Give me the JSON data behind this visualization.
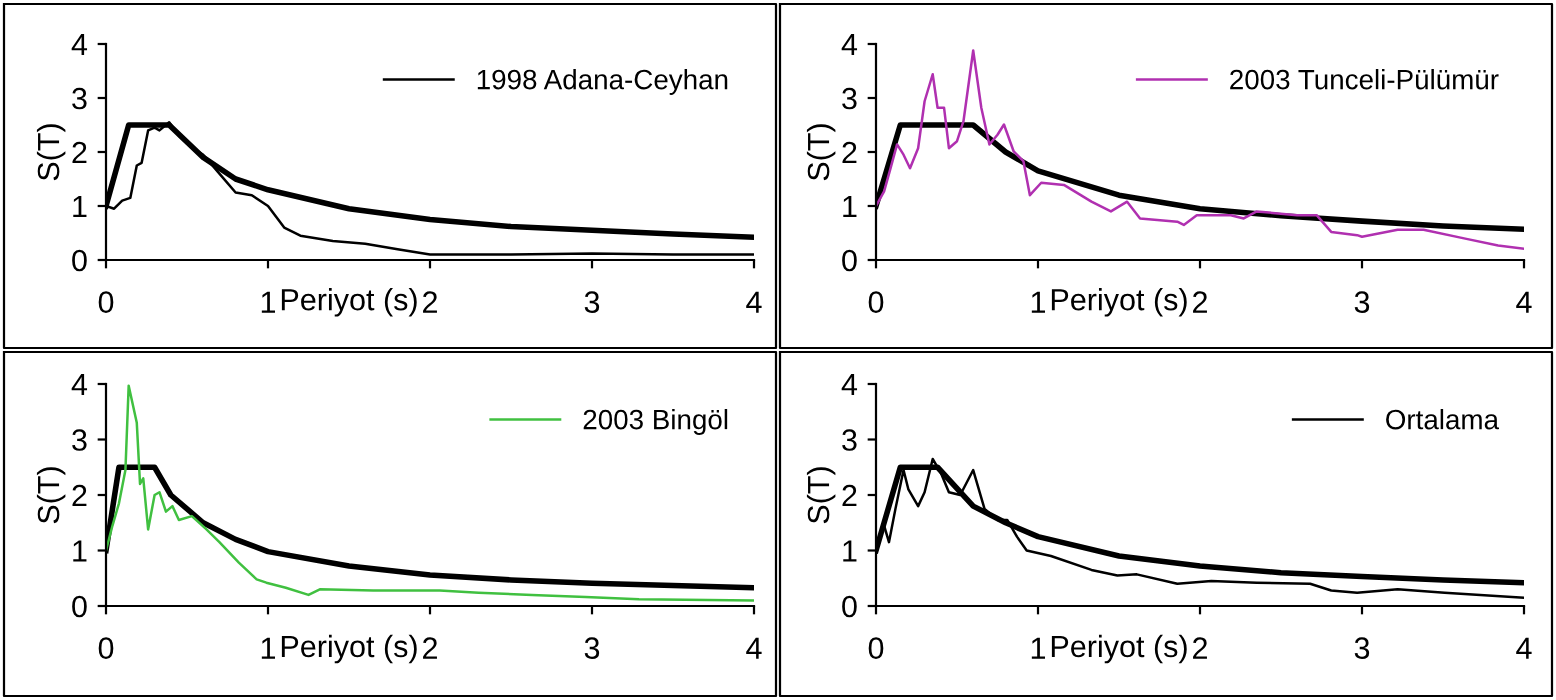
{
  "chart_data": [
    {
      "type": "line",
      "xlabel": "Periyot (s)",
      "ylabel": "S(T)",
      "xlim": [
        0,
        4
      ],
      "ylim": [
        0,
        4
      ],
      "xticks": [
        0,
        1,
        2,
        3,
        4
      ],
      "yticks": [
        0,
        1,
        2,
        3,
        4
      ],
      "legend": "top right",
      "grid": false,
      "series": [
        {
          "color": "#000000",
          "x": [
            0,
            0.14,
            0.39,
            0.6,
            0.8,
            1.0,
            1.5,
            2,
            2.5,
            3,
            3.5,
            4
          ],
          "values": [
            1,
            2.5,
            2.5,
            1.9,
            1.5,
            1.3,
            0.95,
            0.75,
            0.62,
            0.55,
            0.48,
            0.42
          ]
        },
        {
          "name": "1998 Adana-Ceyhan",
          "color": "#000000",
          "x": [
            0,
            0.05,
            0.1,
            0.15,
            0.19,
            0.22,
            0.26,
            0.3,
            0.33,
            0.39,
            0.45,
            0.52,
            0.6,
            0.7,
            0.8,
            0.9,
            1.0,
            1.1,
            1.2,
            1.4,
            1.6,
            1.8,
            2.0,
            2.5,
            3,
            3.5,
            4
          ],
          "values": [
            1.0,
            0.95,
            1.1,
            1.15,
            1.75,
            1.8,
            2.4,
            2.45,
            2.4,
            2.55,
            2.3,
            2.1,
            1.95,
            1.6,
            1.25,
            1.2,
            1.0,
            0.6,
            0.45,
            0.35,
            0.3,
            0.2,
            0.1,
            0.1,
            0.12,
            0.1,
            0.1
          ]
        }
      ]
    },
    {
      "type": "line",
      "xlabel": "Periyot (s)",
      "ylabel": "S(T)",
      "xlim": [
        0,
        4
      ],
      "ylim": [
        0,
        4
      ],
      "xticks": [
        0,
        1,
        2,
        3,
        4
      ],
      "yticks": [
        0,
        1,
        2,
        3,
        4
      ],
      "legend": "top right",
      "grid": false,
      "series": [
        {
          "color": "#000000",
          "x": [
            0,
            0.15,
            0.6,
            0.8,
            1.0,
            1.5,
            2,
            2.5,
            3,
            3.5,
            4
          ],
          "values": [
            1,
            2.5,
            2.5,
            2.0,
            1.65,
            1.2,
            0.95,
            0.82,
            0.72,
            0.63,
            0.57
          ]
        },
        {
          "name": "2003 Tunceli-Pülümür",
          "color": "#b030b0",
          "x": [
            0,
            0.05,
            0.09,
            0.13,
            0.17,
            0.21,
            0.26,
            0.3,
            0.35,
            0.38,
            0.42,
            0.45,
            0.5,
            0.54,
            0.6,
            0.65,
            0.7,
            0.75,
            0.79,
            0.85,
            0.91,
            0.95,
            1.02,
            1.16,
            1.33,
            1.45,
            1.55,
            1.63,
            1.86,
            1.9,
            1.98,
            2.19,
            2.27,
            2.35,
            2.6,
            2.72,
            2.81,
            2.97,
            3.0,
            3.22,
            3.38,
            3.63,
            3.84,
            4.0
          ],
          "values": [
            1.0,
            1.27,
            1.7,
            2.14,
            1.95,
            1.7,
            2.07,
            2.94,
            3.44,
            2.82,
            2.82,
            2.07,
            2.2,
            2.57,
            3.88,
            2.82,
            2.14,
            2.32,
            2.51,
            2.01,
            1.83,
            1.2,
            1.43,
            1.39,
            1.08,
            0.9,
            1.08,
            0.77,
            0.71,
            0.65,
            0.83,
            0.83,
            0.77,
            0.9,
            0.83,
            0.83,
            0.52,
            0.46,
            0.43,
            0.56,
            0.56,
            0.4,
            0.27,
            0.21
          ]
        }
      ]
    },
    {
      "type": "line",
      "xlabel": "Periyot (s)",
      "ylabel": "S(T)",
      "xlim": [
        0,
        4
      ],
      "ylim": [
        0,
        4
      ],
      "xticks": [
        0,
        1,
        2,
        3,
        4
      ],
      "yticks": [
        0,
        1,
        2,
        3,
        4
      ],
      "legend": "top right",
      "grid": false,
      "series": [
        {
          "color": "#000000",
          "x": [
            0,
            0.08,
            0.3,
            0.4,
            0.6,
            0.8,
            1.0,
            1.5,
            2,
            2.5,
            3,
            3.5,
            4
          ],
          "values": [
            1,
            2.5,
            2.5,
            2.0,
            1.5,
            1.2,
            0.98,
            0.72,
            0.56,
            0.47,
            0.41,
            0.37,
            0.33
          ]
        },
        {
          "name": "2003 Bingöl",
          "color": "#40c040",
          "x": [
            0,
            0.04,
            0.08,
            0.12,
            0.14,
            0.19,
            0.21,
            0.23,
            0.26,
            0.3,
            0.33,
            0.37,
            0.41,
            0.45,
            0.53,
            0.62,
            0.7,
            0.82,
            0.93,
            0.99,
            1.11,
            1.25,
            1.32,
            1.65,
            2.06,
            2.3,
            2.63,
            2.96,
            3.29,
            4
          ],
          "values": [
            1.0,
            1.45,
            1.85,
            2.45,
            3.97,
            3.3,
            2.2,
            2.3,
            1.38,
            2.0,
            2.05,
            1.7,
            1.8,
            1.55,
            1.62,
            1.38,
            1.15,
            0.78,
            0.48,
            0.42,
            0.33,
            0.2,
            0.3,
            0.28,
            0.28,
            0.24,
            0.2,
            0.16,
            0.12,
            0.1
          ]
        }
      ]
    },
    {
      "type": "line",
      "xlabel": "Periyot (s)",
      "ylabel": "S(T)",
      "xlim": [
        0,
        4
      ],
      "ylim": [
        0,
        4
      ],
      "xticks": [
        0,
        1,
        2,
        3,
        4
      ],
      "yticks": [
        0,
        1,
        2,
        3,
        4
      ],
      "legend": "top right",
      "grid": false,
      "series": [
        {
          "color": "#000000",
          "x": [
            0,
            0.15,
            0.38,
            0.6,
            0.8,
            1,
            1.5,
            2,
            2.5,
            3,
            3.5,
            4
          ],
          "values": [
            1,
            2.5,
            2.5,
            1.8,
            1.5,
            1.25,
            0.9,
            0.72,
            0.6,
            0.53,
            0.47,
            0.42
          ]
        },
        {
          "name": "Ortalama",
          "color": "#000000",
          "x": [
            0,
            0.05,
            0.08,
            0.12,
            0.17,
            0.2,
            0.26,
            0.3,
            0.35,
            0.4,
            0.45,
            0.52,
            0.6,
            0.67,
            0.75,
            0.81,
            0.87,
            0.93,
            1.08,
            1.33,
            1.49,
            1.61,
            1.86,
            2.07,
            2.35,
            2.68,
            2.81,
            2.97,
            3.22,
            3.51,
            4
          ],
          "values": [
            1.0,
            1.45,
            1.15,
            1.75,
            2.45,
            2.1,
            1.8,
            2.05,
            2.65,
            2.4,
            2.05,
            2.0,
            2.45,
            1.75,
            1.55,
            1.55,
            1.25,
            1.0,
            0.9,
            0.65,
            0.55,
            0.57,
            0.4,
            0.45,
            0.42,
            0.4,
            0.28,
            0.24,
            0.3,
            0.24,
            0.15
          ]
        }
      ]
    }
  ]
}
